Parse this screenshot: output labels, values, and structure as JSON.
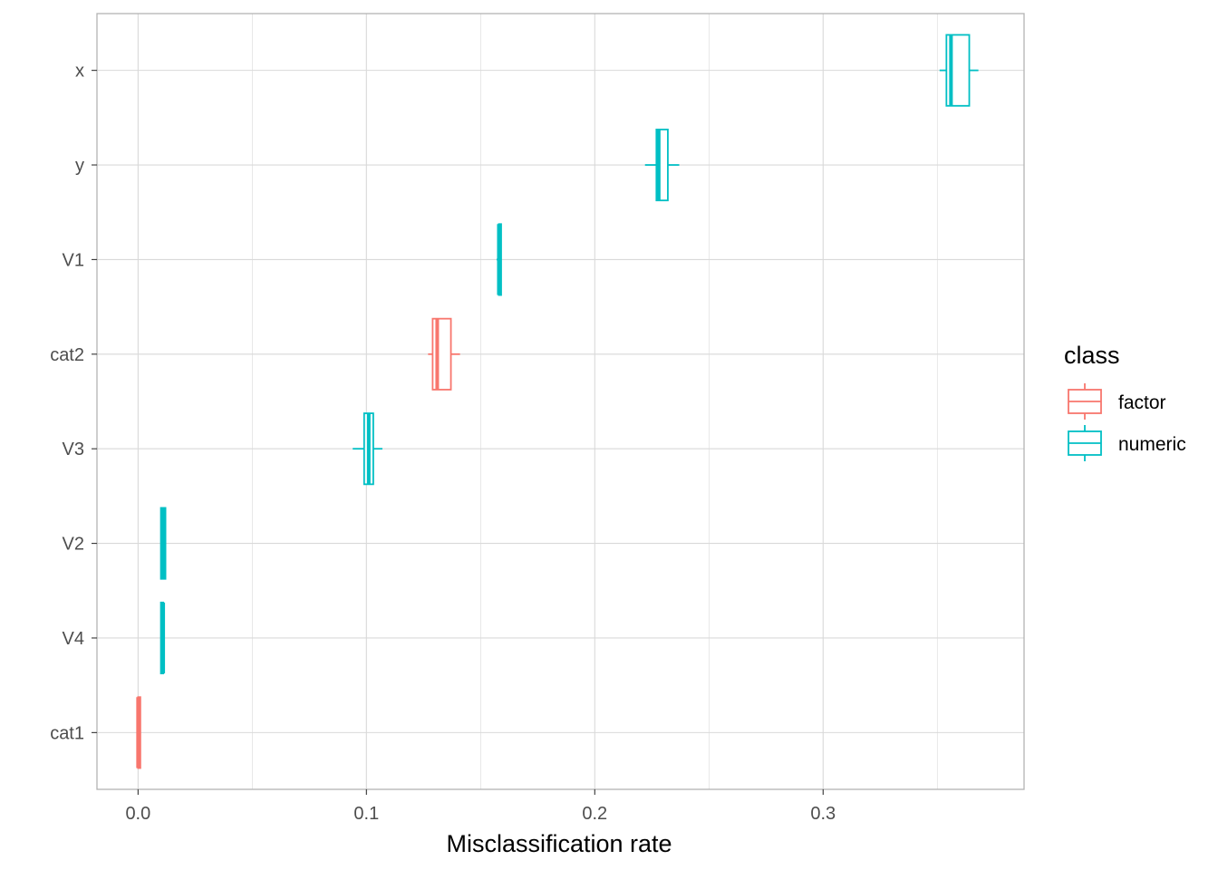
{
  "chart_data": {
    "type": "boxplot",
    "orientation": "horizontal",
    "xlabel": "Misclassification rate",
    "ylabel": "",
    "xlim": [
      -0.018,
      0.388
    ],
    "x_ticks": [
      0.0,
      0.1,
      0.2,
      0.3
    ],
    "x_tick_labels": [
      "0.0",
      "0.1",
      "0.2",
      "0.3"
    ],
    "categories": [
      "cat1",
      "V4",
      "V2",
      "V3",
      "cat2",
      "V1",
      "y",
      "x"
    ],
    "grid": true,
    "legend": {
      "title": "class",
      "position": "right",
      "entries": [
        {
          "label": "factor",
          "color": "#F8766D"
        },
        {
          "label": "numeric",
          "color": "#00BFC4"
        }
      ]
    },
    "boxes": [
      {
        "category": "x",
        "class": "numeric",
        "min": 0.351,
        "q1": 0.354,
        "median": 0.356,
        "q3": 0.364,
        "max": 0.368
      },
      {
        "category": "y",
        "class": "numeric",
        "min": 0.222,
        "q1": 0.227,
        "median": 0.228,
        "q3": 0.232,
        "max": 0.237
      },
      {
        "category": "V1",
        "class": "numeric",
        "min": 0.157,
        "q1": 0.158,
        "median": 0.158,
        "q3": 0.159,
        "max": 0.159
      },
      {
        "category": "cat2",
        "class": "factor",
        "min": 0.127,
        "q1": 0.129,
        "median": 0.131,
        "q3": 0.137,
        "max": 0.141
      },
      {
        "category": "V3",
        "class": "numeric",
        "min": 0.094,
        "q1": 0.099,
        "median": 0.101,
        "q3": 0.103,
        "max": 0.107
      },
      {
        "category": "V2",
        "class": "numeric",
        "min": 0.01,
        "q1": 0.01,
        "median": 0.011,
        "q3": 0.012,
        "max": 0.012
      },
      {
        "category": "V4",
        "class": "numeric",
        "min": 0.01,
        "q1": 0.01,
        "median": 0.011,
        "q3": 0.011,
        "max": 0.011
      },
      {
        "category": "cat1",
        "class": "factor",
        "min": 0.0,
        "q1": 0.0,
        "median": 0.0,
        "q3": 0.001,
        "max": 0.001
      }
    ],
    "colors": {
      "grid": "#d9d9d9",
      "panel_border": "#b3b3b3",
      "tick": "#333333",
      "axis_text": "#4d4d4d"
    }
  }
}
